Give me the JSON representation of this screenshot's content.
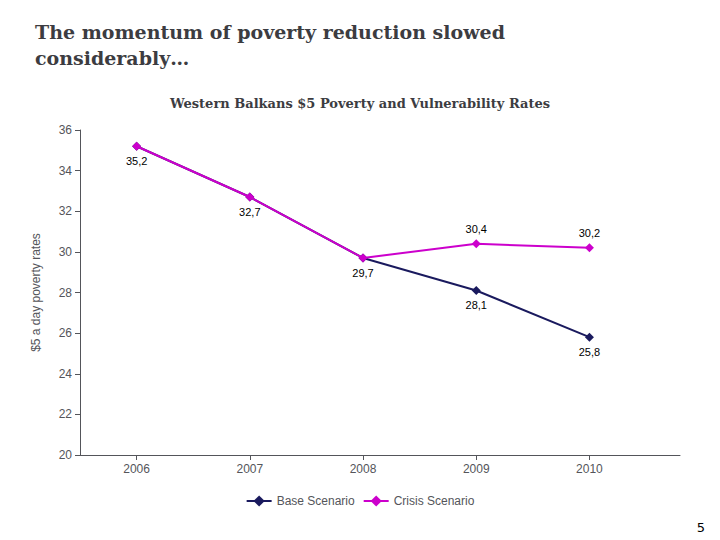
{
  "chart_data": {
    "type": "line",
    "title": "The momentum of poverty reduction slowed\nconsiderably…",
    "subtitle": "Western Balkans $5 Poverty and Vulnerability Rates",
    "ylabel": "$5 a day poverty rates",
    "annotations": [
      "5"
    ],
    "x": [
      2006,
      2007,
      2008,
      2009,
      2010
    ],
    "xlim": [
      2005.5,
      2010.8
    ],
    "xticks": [
      2006,
      2007,
      2008,
      2009,
      2010
    ],
    "ylim": [
      20,
      36
    ],
    "yticks": [
      20,
      22,
      24,
      26,
      28,
      30,
      32,
      34,
      36
    ],
    "grid": false,
    "legend": "bottom",
    "data_labels": true,
    "marker": "diamond",
    "series": [
      {
        "name": "Base Scenario",
        "color": "#1a1a5e",
        "values": [
          35.2,
          32.7,
          29.7,
          28.1,
          25.8
        ],
        "value_labels": [
          "35,2",
          "32,7",
          "29,7",
          "28,1",
          "25,8"
        ]
      },
      {
        "name": "Crisis Scenario",
        "color": "#cc00cc",
        "values": [
          35.2,
          32.7,
          29.7,
          30.4,
          30.2
        ],
        "value_labels": [
          null,
          null,
          null,
          "30,4",
          "30,2"
        ]
      }
    ]
  }
}
